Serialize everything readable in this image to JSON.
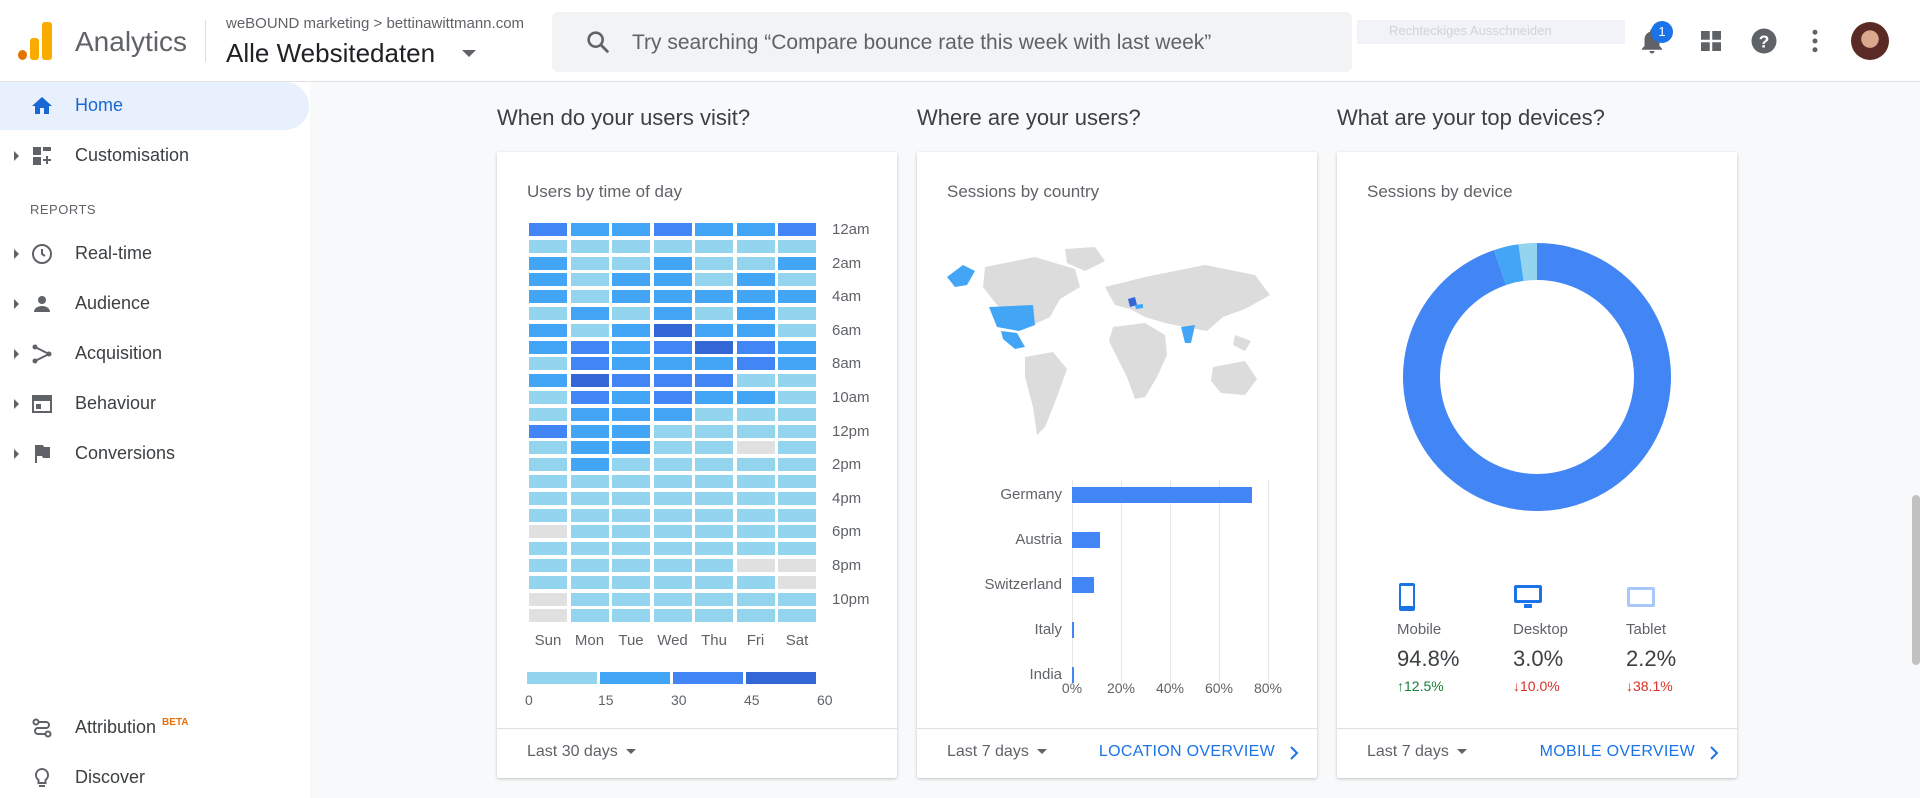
{
  "header": {
    "app_title": "Analytics",
    "account_breadcrumb": "weBOUND marketing > bettinawittmann.com",
    "view_name": "Alle Websitedaten",
    "search_placeholder": "Try searching “Compare bounce rate this week with last week”",
    "ghost_text": "Rechteckiges Ausschneiden",
    "notification_count": "1",
    "icons": [
      "bell-icon",
      "apps-grid-icon",
      "help-icon",
      "more-vert-icon",
      "avatar"
    ]
  },
  "sidebar": {
    "items": [
      {
        "label": "Home",
        "icon": "home-icon",
        "active": true
      },
      {
        "label": "Customisation",
        "icon": "dashboard-icon"
      }
    ],
    "reports_heading": "REPORTS",
    "reports": [
      {
        "label": "Real-time",
        "icon": "clock-icon"
      },
      {
        "label": "Audience",
        "icon": "person-icon"
      },
      {
        "label": "Acquisition",
        "icon": "acquisition-icon"
      },
      {
        "label": "Behaviour",
        "icon": "behaviour-icon"
      },
      {
        "label": "Conversions",
        "icon": "flag-icon"
      }
    ],
    "bottom": [
      {
        "label": "Attribution",
        "badge": "BETA",
        "icon": "attribution-icon"
      },
      {
        "label": "Discover",
        "icon": "lightbulb-icon"
      }
    ]
  },
  "sections": {
    "time": {
      "heading": "When do your users visit?",
      "card_title": "Users by time of day",
      "range": "Last 30 days"
    },
    "country": {
      "heading": "Where are your users?",
      "card_title": "Sessions by country",
      "range": "Last 7 days",
      "link": "LOCATION OVERVIEW"
    },
    "devices": {
      "heading": "What are your top devices?",
      "card_title": "Sessions by device",
      "range": "Last 7 days",
      "link": "MOBILE OVERVIEW"
    }
  },
  "heatmap": {
    "days": [
      "Sun",
      "Mon",
      "Tue",
      "Wed",
      "Thu",
      "Fri",
      "Sat"
    ],
    "time_labels": [
      "12am",
      "2am",
      "4am",
      "6am",
      "8am",
      "10am",
      "12pm",
      "2pm",
      "4pm",
      "6pm",
      "8pm",
      "10pm"
    ],
    "legend_values": [
      "0",
      "15",
      "30",
      "45",
      "60"
    ],
    "legend_colors": [
      "#93d5ee",
      "#42a5f5",
      "#4285f4",
      "#3367d6"
    ],
    "empty_color": "#e0e0e0",
    "levels": [
      [
        3,
        2,
        2,
        3,
        2,
        2,
        3
      ],
      [
        1,
        1,
        1,
        1,
        1,
        1,
        1
      ],
      [
        2,
        1,
        1,
        2,
        1,
        1,
        2
      ],
      [
        2,
        1,
        2,
        2,
        1,
        2,
        1
      ],
      [
        2,
        1,
        2,
        2,
        2,
        2,
        2
      ],
      [
        1,
        2,
        1,
        2,
        1,
        2,
        1
      ],
      [
        2,
        1,
        2,
        4,
        2,
        2,
        1
      ],
      [
        2,
        3,
        2,
        3,
        4,
        3,
        2
      ],
      [
        1,
        3,
        2,
        2,
        2,
        3,
        2
      ],
      [
        2,
        4,
        3,
        3,
        3,
        1,
        1
      ],
      [
        1,
        3,
        2,
        3,
        2,
        2,
        1
      ],
      [
        1,
        2,
        2,
        2,
        1,
        1,
        1
      ],
      [
        3,
        2,
        2,
        1,
        1,
        1,
        1
      ],
      [
        1,
        2,
        2,
        1,
        1,
        0,
        1
      ],
      [
        1,
        2,
        1,
        1,
        1,
        1,
        1
      ],
      [
        1,
        1,
        1,
        1,
        1,
        1,
        1
      ],
      [
        1,
        1,
        1,
        1,
        1,
        1,
        1
      ],
      [
        1,
        1,
        1,
        1,
        1,
        1,
        1
      ],
      [
        0,
        1,
        1,
        1,
        1,
        1,
        1
      ],
      [
        1,
        1,
        1,
        1,
        1,
        1,
        1
      ],
      [
        1,
        1,
        1,
        1,
        1,
        0,
        0
      ],
      [
        1,
        1,
        1,
        1,
        1,
        1,
        0
      ],
      [
        0,
        1,
        1,
        1,
        1,
        1,
        1
      ],
      [
        0,
        1,
        1,
        1,
        1,
        1,
        1
      ]
    ]
  },
  "chart_data": [
    {
      "type": "bar",
      "title": "Sessions by country",
      "orientation": "horizontal",
      "categories": [
        "Germany",
        "Austria",
        "Switzerland",
        "Italy",
        "India"
      ],
      "values": [
        73.5,
        11.5,
        9.0,
        1.0,
        1.0
      ],
      "unit": "%",
      "xlim": [
        0,
        80
      ],
      "x_ticks": [
        "0%",
        "20%",
        "40%",
        "60%",
        "80%"
      ]
    },
    {
      "type": "pie",
      "title": "Sessions by device",
      "donut": true,
      "categories": [
        "Mobile",
        "Desktop",
        "Tablet"
      ],
      "values": [
        94.8,
        3.0,
        2.2
      ],
      "colors": [
        "#4285f4",
        "#42a5f5",
        "#93d5ee"
      ]
    }
  ],
  "devices": [
    {
      "name": "Mobile",
      "pct": "94.8%",
      "change": "12.5%",
      "dir": "up",
      "icon": "phone-icon"
    },
    {
      "name": "Desktop",
      "pct": "3.0%",
      "change": "10.0%",
      "dir": "down",
      "icon": "desktop-icon"
    },
    {
      "name": "Tablet",
      "pct": "2.2%",
      "change": "38.1%",
      "dir": "down",
      "icon": "tablet-icon"
    }
  ],
  "map_highlight_colors": {
    "land": "#dcdcdc",
    "high": "#3367d6",
    "mid": "#42a5f5"
  }
}
